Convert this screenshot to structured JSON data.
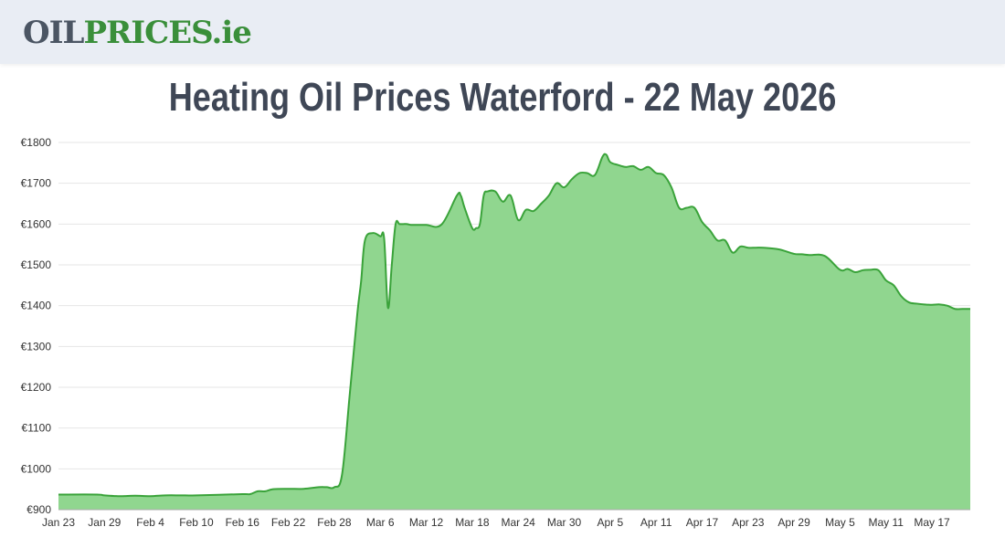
{
  "header": {
    "logo_part1": "OIL",
    "logo_part2": "PRICES",
    "logo_part3": ".ie"
  },
  "page": {
    "title": "Heating Oil Prices Waterford - 22 May 2026"
  },
  "colors": {
    "line": "#3aa33a",
    "fill": "#90d68f",
    "grid": "#e6e6e6",
    "axis": "#aaaaaa"
  },
  "chart_data": {
    "type": "area",
    "title": "",
    "xlabel": "",
    "ylabel": "",
    "ylim": [
      900,
      1800
    ],
    "y_ticks": [
      "€900",
      "€1000",
      "€1100",
      "€1200",
      "€1300",
      "€1400",
      "€1500",
      "€1600",
      "€1700",
      "€1800"
    ],
    "y_tick_values": [
      900,
      1000,
      1100,
      1200,
      1300,
      1400,
      1500,
      1600,
      1700,
      1800
    ],
    "x_ticks": [
      "Jan 23",
      "Jan 29",
      "Feb 4",
      "Feb 10",
      "Feb 16",
      "Feb 22",
      "Feb 28",
      "Mar 6",
      "Mar 12",
      "Mar 18",
      "Mar 24",
      "Mar 30",
      "Apr 5",
      "Apr 11",
      "Apr 17",
      "Apr 23",
      "Apr 29",
      "May 5",
      "May 11",
      "May 17"
    ],
    "x_tick_days": [
      0,
      6,
      12,
      18,
      24,
      30,
      36,
      42,
      48,
      54,
      60,
      66,
      72,
      78,
      84,
      90,
      96,
      102,
      108,
      114
    ],
    "x_day_range": [
      0,
      119
    ],
    "grid": true,
    "legend": "none",
    "series": [
      {
        "x": [
          0,
          5,
          6,
          8,
          10,
          12,
          14,
          16,
          18,
          24,
          25,
          26,
          27,
          28,
          30,
          32,
          34,
          35,
          36,
          37,
          38,
          39,
          39.5,
          40,
          41,
          42,
          42.5,
          43,
          43.5,
          44,
          44.5,
          45,
          45.5,
          46,
          47,
          48,
          50,
          52,
          52.5,
          53,
          54,
          54.5,
          55,
          55.5,
          56,
          57,
          58,
          59,
          60,
          61,
          62,
          63,
          64,
          65,
          66,
          67,
          68,
          69,
          70,
          71,
          71.5,
          72,
          73,
          74,
          75,
          76,
          77,
          78,
          79,
          80,
          81,
          82,
          83,
          84,
          85,
          86,
          87,
          88,
          89,
          90,
          91,
          92,
          94,
          96,
          97,
          98,
          100,
          102,
          103,
          104,
          105,
          106,
          107,
          108,
          109,
          110,
          111,
          112,
          113,
          114,
          115,
          116,
          117,
          118,
          119
        ],
        "y": [
          937,
          937,
          935,
          933,
          934,
          933,
          935,
          935,
          935,
          938,
          938,
          945,
          945,
          950,
          951,
          951,
          955,
          955,
          955,
          985,
          1180,
          1380,
          1460,
          1560,
          1578,
          1570,
          1565,
          1395,
          1500,
          1600,
          1600,
          1600,
          1600,
          1598,
          1598,
          1598,
          1599,
          1670,
          1670,
          1640,
          1590,
          1590,
          1600,
          1670,
          1680,
          1680,
          1655,
          1670,
          1610,
          1635,
          1632,
          1650,
          1670,
          1700,
          1690,
          1710,
          1725,
          1725,
          1720,
          1765,
          1770,
          1752,
          1745,
          1740,
          1742,
          1733,
          1740,
          1725,
          1720,
          1690,
          1640,
          1640,
          1640,
          1605,
          1585,
          1560,
          1560,
          1530,
          1545,
          1542,
          1542,
          1542,
          1538,
          1527,
          1526,
          1524,
          1522,
          1488,
          1490,
          1482,
          1487,
          1488,
          1487,
          1462,
          1450,
          1423,
          1408,
          1405,
          1403,
          1402,
          1403,
          1400,
          1392,
          1392,
          1392
        ]
      }
    ]
  }
}
